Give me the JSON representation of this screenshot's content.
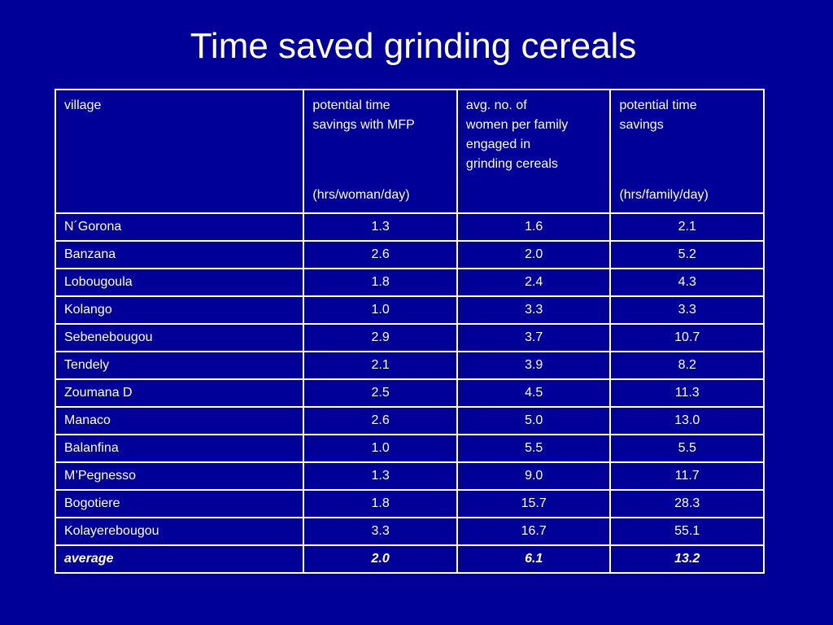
{
  "slide": {
    "title": "Time saved grinding cereals",
    "background_color": "#000099",
    "text_color": "#ffffff"
  },
  "table": {
    "headers": [
      {
        "main": "village",
        "unit": ""
      },
      {
        "main": "potential  time\nsavings with MFP",
        "unit": "(hrs/woman/day)"
      },
      {
        "main": "avg. no. of\nwomen per family\nengaged in\ngrinding cereals",
        "unit": ""
      },
      {
        "main": "potential time\nsavings",
        "unit": "(hrs/family/day)"
      }
    ],
    "rows": [
      {
        "village": "N´Gorona",
        "time_per_woman": "1.3",
        "women_per_family": "1.6",
        "time_per_family": "2.1"
      },
      {
        "village": "Banzana",
        "time_per_woman": "2.6",
        "women_per_family": "2.0",
        "time_per_family": "5.2"
      },
      {
        "village": "Lobougoula",
        "time_per_woman": "1.8",
        "women_per_family": "2.4",
        "time_per_family": "4.3"
      },
      {
        "village": "Kolango",
        "time_per_woman": "1.0",
        "women_per_family": "3.3",
        "time_per_family": "3.3"
      },
      {
        "village": "Sebenebougou",
        "time_per_woman": "2.9",
        "women_per_family": "3.7",
        "time_per_family": "10.7"
      },
      {
        "village": "Tendely",
        "time_per_woman": "2.1",
        "women_per_family": "3.9",
        "time_per_family": "8.2"
      },
      {
        "village": "Zoumana D",
        "time_per_woman": "2.5",
        "women_per_family": "4.5",
        "time_per_family": "11.3"
      },
      {
        "village": "Manaco",
        "time_per_woman": "2.6",
        "women_per_family": "5.0",
        "time_per_family": "13.0"
      },
      {
        "village": "Balanfina",
        "time_per_woman": "1.0",
        "women_per_family": "5.5",
        "time_per_family": "5.5"
      },
      {
        "village": "M’Pegnesso",
        "time_per_woman": "1.3",
        "women_per_family": "9.0",
        "time_per_family": "11.7"
      },
      {
        "village": "Bogotiere",
        "time_per_woman": "1.8",
        "women_per_family": "15.7",
        "time_per_family": "28.3"
      },
      {
        "village": "Kolayerebougou",
        "time_per_woman": "3.3",
        "women_per_family": "16.7",
        "time_per_family": "55.1"
      }
    ],
    "average": {
      "label": "average",
      "time_per_woman": "2.0",
      "women_per_family": "6.1",
      "time_per_family": "13.2"
    }
  }
}
